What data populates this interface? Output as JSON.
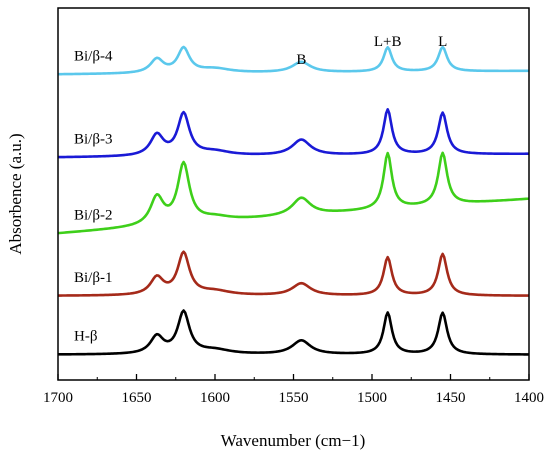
{
  "chart_data": {
    "type": "line",
    "xlabel": "Wavenumber (cm−1)",
    "ylabel": "Absorbence (a.u.)",
    "xlim": [
      1700,
      1400
    ],
    "x_reversed": true,
    "x_ticks": [
      1700,
      1650,
      1600,
      1550,
      1500,
      1450,
      1400
    ],
    "y_ticks_shown": false,
    "grid": false,
    "legend": "inline labels at left of each curve",
    "band_labels": [
      {
        "text": "B",
        "x": 1545
      },
      {
        "text": "L+B",
        "x": 1490
      },
      {
        "text": "L",
        "x": 1455
      }
    ],
    "peak_positions": [
      1637,
      1620,
      1545,
      1490,
      1455
    ],
    "series": [
      {
        "name": "Bi/β-4",
        "color": "#5bc8ec",
        "baseline_start": 0.86,
        "baseline_end": 0.87,
        "peaks": [
          [
            1637,
            0.04
          ],
          [
            1620,
            0.07
          ],
          [
            1545,
            0.03
          ],
          [
            1490,
            0.07
          ],
          [
            1455,
            0.07
          ]
        ]
      },
      {
        "name": "Bi/β-3",
        "color": "#1a1ad6",
        "baseline_start": 0.62,
        "baseline_end": 0.63,
        "peaks": [
          [
            1637,
            0.06
          ],
          [
            1620,
            0.12
          ],
          [
            1545,
            0.045
          ],
          [
            1490,
            0.13
          ],
          [
            1455,
            0.12
          ]
        ]
      },
      {
        "name": "Bi/β-2",
        "color": "#3ecf1a",
        "baseline_start": 0.4,
        "baseline_end": 0.5,
        "peaks": [
          [
            1637,
            0.08
          ],
          [
            1620,
            0.17
          ],
          [
            1545,
            0.05
          ],
          [
            1490,
            0.16
          ],
          [
            1455,
            0.15
          ]
        ]
      },
      {
        "name": "Bi/β-1",
        "color": "#a52a1a",
        "baseline_start": 0.22,
        "baseline_end": 0.22,
        "peaks": [
          [
            1637,
            0.05
          ],
          [
            1620,
            0.12
          ],
          [
            1545,
            0.035
          ],
          [
            1490,
            0.11
          ],
          [
            1455,
            0.12
          ]
        ]
      },
      {
        "name": "H-β",
        "color": "#000000",
        "baseline_start": 0.05,
        "baseline_end": 0.05,
        "peaks": [
          [
            1637,
            0.05
          ],
          [
            1620,
            0.12
          ],
          [
            1545,
            0.04
          ],
          [
            1490,
            0.12
          ],
          [
            1455,
            0.12
          ]
        ]
      }
    ]
  }
}
